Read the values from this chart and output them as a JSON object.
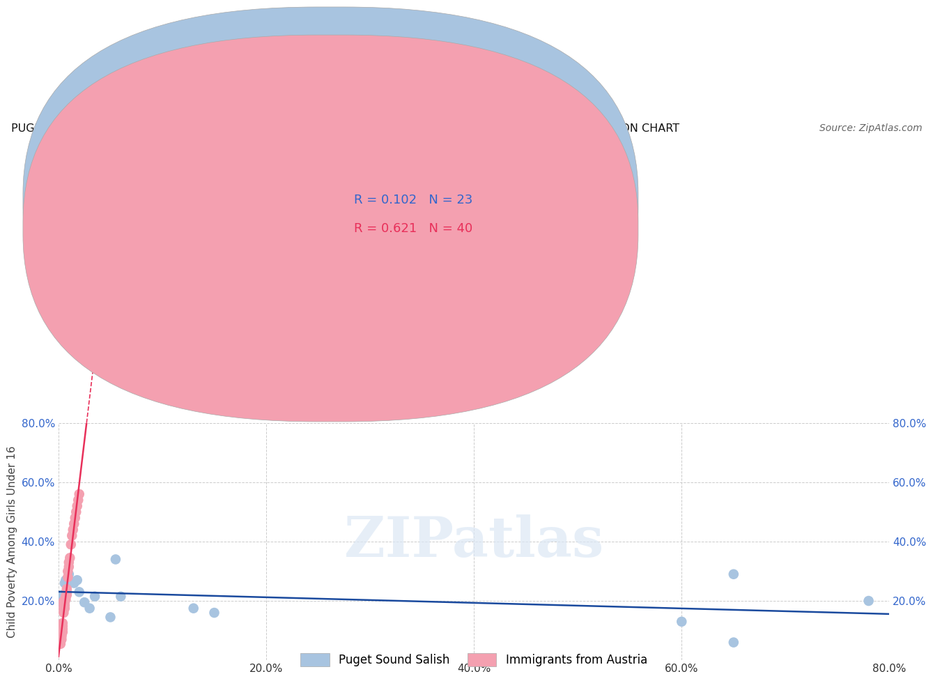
{
  "title": "PUGET SOUND SALISH VS IMMIGRANTS FROM AUSTRIA CHILD POVERTY AMONG GIRLS UNDER 16 CORRELATION CHART",
  "source": "Source: ZipAtlas.com",
  "ylabel": "Child Poverty Among Girls Under 16",
  "xlabel": "",
  "xlim": [
    0.0,
    0.8
  ],
  "ylim": [
    0.0,
    0.8
  ],
  "xticks": [
    0.0,
    0.2,
    0.4,
    0.6,
    0.8
  ],
  "yticks": [
    0.0,
    0.2,
    0.4,
    0.6,
    0.8
  ],
  "xticklabels": [
    "0.0%",
    "20.0%",
    "40.0%",
    "60.0%",
    "80.0%"
  ],
  "yticklabels": [
    "",
    "20.0%",
    "40.0%",
    "60.0%",
    "80.0%"
  ],
  "grid_color": "#cccccc",
  "background_color": "#ffffff",
  "watermark_text": "ZIPatlas",
  "series": [
    {
      "name": "Puget Sound Salish",
      "color": "#a8c4e0",
      "R": 0.102,
      "N": 23,
      "trend_color": "#1a4a9e",
      "x": [
        0.003,
        0.003,
        0.004,
        0.006,
        0.007,
        0.008,
        0.01,
        0.012,
        0.015,
        0.018,
        0.02,
        0.025,
        0.03,
        0.035,
        0.05,
        0.055,
        0.06,
        0.13,
        0.15,
        0.6,
        0.65,
        0.65,
        0.78
      ],
      "y": [
        0.195,
        0.21,
        0.22,
        0.26,
        0.27,
        0.23,
        0.29,
        0.265,
        0.26,
        0.27,
        0.23,
        0.195,
        0.175,
        0.215,
        0.145,
        0.34,
        0.215,
        0.175,
        0.16,
        0.13,
        0.29,
        0.06,
        0.2
      ]
    },
    {
      "name": "Immigrants from Austria",
      "color": "#f4a0b0",
      "R": 0.621,
      "N": 40,
      "trend_color": "#e8305a",
      "x": [
        0.002,
        0.002,
        0.002,
        0.003,
        0.003,
        0.003,
        0.003,
        0.003,
        0.003,
        0.004,
        0.004,
        0.004,
        0.004,
        0.005,
        0.005,
        0.005,
        0.005,
        0.005,
        0.006,
        0.006,
        0.006,
        0.007,
        0.007,
        0.008,
        0.008,
        0.008,
        0.009,
        0.009,
        0.01,
        0.01,
        0.011,
        0.012,
        0.013,
        0.014,
        0.015,
        0.016,
        0.017,
        0.018,
        0.019,
        0.02
      ],
      "y": [
        0.055,
        0.065,
        0.08,
        0.07,
        0.08,
        0.085,
        0.095,
        0.105,
        0.115,
        0.095,
        0.105,
        0.115,
        0.125,
        0.16,
        0.17,
        0.18,
        0.19,
        0.2,
        0.175,
        0.185,
        0.195,
        0.205,
        0.215,
        0.22,
        0.23,
        0.24,
        0.28,
        0.3,
        0.315,
        0.33,
        0.345,
        0.39,
        0.42,
        0.44,
        0.46,
        0.48,
        0.5,
        0.52,
        0.54,
        0.56
      ]
    }
  ]
}
